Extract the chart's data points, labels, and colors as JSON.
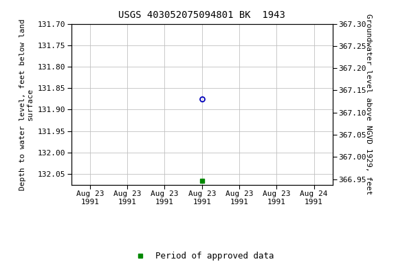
{
  "title": "USGS 403052075094801 BK  1943",
  "left_ylabel_line1": "Depth to water level, feet below land",
  "left_ylabel_line2": "surface",
  "right_ylabel": "Groundwater level above NGVD 1929, feet",
  "ylim_left": [
    131.7,
    132.075
  ],
  "ylim_right_top": 367.3,
  "ylim_right_bottom": 366.9375,
  "left_yticks": [
    131.7,
    131.75,
    131.8,
    131.85,
    131.9,
    131.95,
    132.0,
    132.05
  ],
  "right_yticks": [
    367.3,
    367.25,
    367.2,
    367.15,
    367.1,
    367.05,
    367.0,
    366.95
  ],
  "xtick_labels": [
    "Aug 23\n1991",
    "Aug 23\n1991",
    "Aug 23\n1991",
    "Aug 23\n1991",
    "Aug 23\n1991",
    "Aug 23\n1991",
    "Aug 24\n1991"
  ],
  "xtick_positions": [
    0,
    1,
    2,
    3,
    4,
    5,
    6
  ],
  "point_x": 3.0,
  "point_y_circle": 131.875,
  "point_y_square": 132.065,
  "circle_color": "#0000bb",
  "square_color": "#008800",
  "background_color": "#ffffff",
  "grid_color": "#c0c0c0",
  "title_fontsize": 10,
  "label_fontsize": 8,
  "tick_fontsize": 8,
  "legend_fontsize": 9
}
